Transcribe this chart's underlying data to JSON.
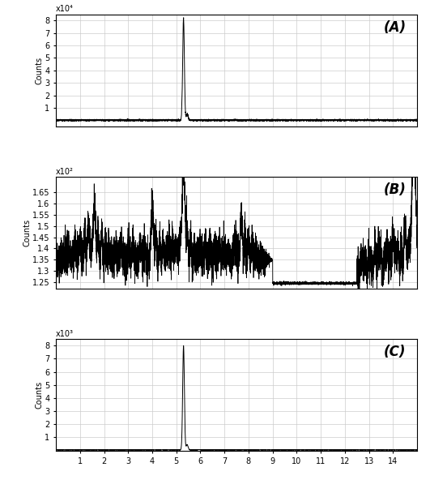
{
  "panel_A": {
    "label": "(A)",
    "ylabel": "Counts",
    "yscale_label": "x10⁴",
    "ylim": [
      -0.05,
      0.85
    ],
    "yticks": [
      0.1,
      0.2,
      0.3,
      0.4,
      0.5,
      0.6,
      0.7,
      0.8
    ],
    "ytick_labels": [
      "1",
      "2",
      "3",
      "4",
      "5",
      "6",
      "7",
      "8"
    ],
    "xlim": [
      0,
      15
    ],
    "xticks": [
      1,
      2,
      3,
      4,
      5,
      6,
      7,
      8,
      9,
      10,
      11,
      12,
      13,
      14
    ],
    "peak_x": 5.3,
    "peak_height": 0.8,
    "baseline": 0.0
  },
  "panel_B": {
    "label": "(B)",
    "ylabel": "Counts",
    "yscale_label": "x10²",
    "ylim": [
      1.22,
      1.72
    ],
    "yticks": [
      1.25,
      1.3,
      1.35,
      1.4,
      1.45,
      1.5,
      1.55,
      1.6,
      1.65
    ],
    "ytick_labels": [
      "1.25",
      "1.3",
      "1.35",
      "1.4",
      "1.45",
      "1.5",
      "1.55",
      "1.6",
      "1.65"
    ],
    "xlim": [
      0,
      15
    ],
    "xticks": [
      1,
      2,
      3,
      4,
      5,
      6,
      7,
      8,
      9,
      10,
      11,
      12,
      13,
      14
    ],
    "baseline": 1.35
  },
  "panel_C": {
    "label": "(C)",
    "ylabel": "Counts",
    "yscale_label": "x10³",
    "ylim": [
      -0.1,
      8.5
    ],
    "yticks": [
      1,
      2,
      3,
      4,
      5,
      6,
      7,
      8
    ],
    "ytick_labels": [
      "1",
      "2",
      "3",
      "4",
      "5",
      "6",
      "7",
      "8"
    ],
    "xlim": [
      0,
      15
    ],
    "xticks": [
      1,
      2,
      3,
      4,
      5,
      6,
      7,
      8,
      9,
      10,
      11,
      12,
      13,
      14
    ],
    "peak_x": 5.3,
    "peak_height": 8.0,
    "baseline": 0.0
  },
  "line_color": "#000000",
  "grid_color": "#cccccc",
  "bg_color": "#ffffff"
}
